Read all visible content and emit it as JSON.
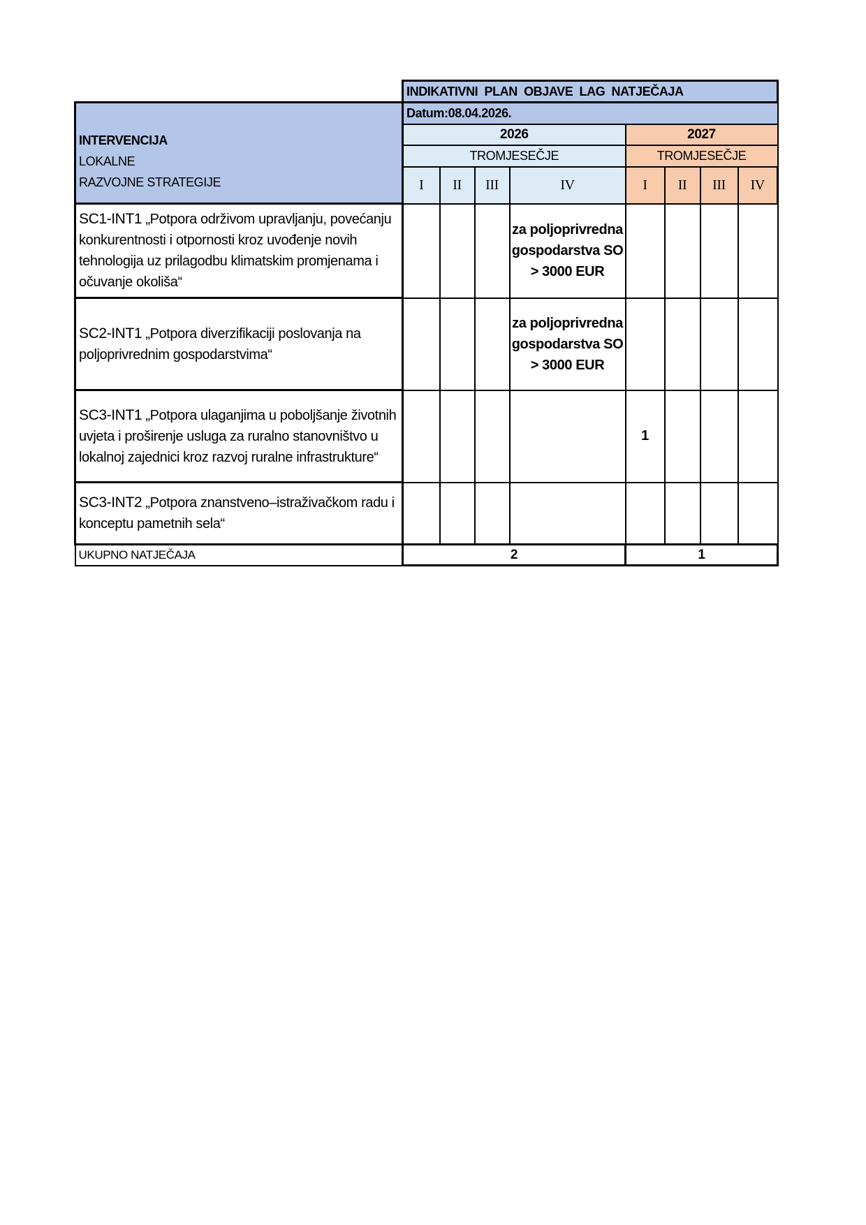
{
  "header": {
    "title": "INDIKATIVNI  PLAN  OBJAVE  LAG  NATJEČAJA",
    "date": "Datum:08.04.2026.",
    "left_header": [
      "INTERVENCIJA",
      "LOKALNE",
      "RAZVOJNE STRATEGIJE"
    ],
    "years": [
      {
        "year": "2026",
        "label": "TROMJESEČJE",
        "color": "#ddebf7"
      },
      {
        "year": "2027",
        "label": "TROMJESEČJE",
        "color": "#f8cbad"
      }
    ],
    "quarters": [
      "I",
      "II",
      "III",
      "IV",
      "I",
      "II",
      "III",
      "IV"
    ],
    "header_color": "#b4c6e7"
  },
  "rows": [
    {
      "code": "SC1-INT1",
      "text": " „Potpora održivom upravljanju, povećanju konkurentnosti i otpornosti kroz uvođenje novih tehnologija uz prilagodbu klimatskim promjenama i očuvanje okoliša“",
      "cells": [
        "",
        "",
        "",
        "za poljoprivredna gospodarstva SO > 3000 EUR",
        "",
        "",
        "",
        ""
      ]
    },
    {
      "code": "SC2-INT1",
      "text": " „Potpora diverzifikaciji poslovanja na poljoprivrednim gospodarstvima“",
      "cells": [
        "",
        "",
        "",
        "za poljoprivredna gospodarstva SO > 3000 EUR",
        "",
        "",
        "",
        ""
      ]
    },
    {
      "code": "SC3-INT1",
      "text": " „Potpora ulaganjima u poboljšanje životnih uvjeta i proširenje usluga za ruralno stanovništvo u lokalnoj zajednici kroz razvoj ruralne infrastrukture“",
      "cells": [
        "",
        "",
        "",
        "",
        "1",
        "",
        "",
        ""
      ]
    },
    {
      "code": "SC3-INT2",
      "text": " „Potpora znanstveno–istraživačkom radu i konceptu pametnih sela“",
      "cells": [
        "",
        "",
        "",
        "",
        "",
        "",
        "",
        ""
      ]
    }
  ],
  "total": {
    "label": "UKUPNO NATJEČAJA",
    "values": [
      "2",
      "1"
    ]
  }
}
